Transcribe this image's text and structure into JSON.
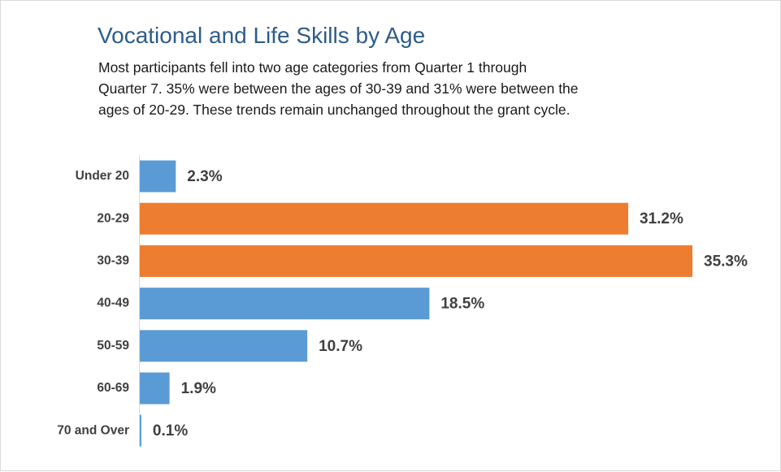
{
  "chart_data": {
    "type": "hbar",
    "title": "Vocational and Life Skills by Age",
    "subtitle": [
      "Most participants fell into two age categories from Quarter 1 through",
      "Quarter 7. 35% were between the ages of 30-39 and 31% were between the",
      "ages of 20-29. These trends remain unchanged throughout the grant cycle."
    ],
    "categories": [
      "Under 20",
      "20-29",
      "30-39",
      "40-49",
      "50-59",
      "60-69",
      "70 and Over"
    ],
    "values": [
      2.3,
      31.2,
      35.3,
      18.5,
      10.7,
      1.9,
      0.1
    ],
    "value_labels": [
      "2.3%",
      "31.2%",
      "35.3%",
      "18.5%",
      "10.7%",
      "1.9%",
      "0.1%"
    ],
    "colors": [
      "#5b9bd5",
      "#ed7d31",
      "#ed7d31",
      "#5b9bd5",
      "#5b9bd5",
      "#5b9bd5",
      "#5b9bd5"
    ]
  }
}
